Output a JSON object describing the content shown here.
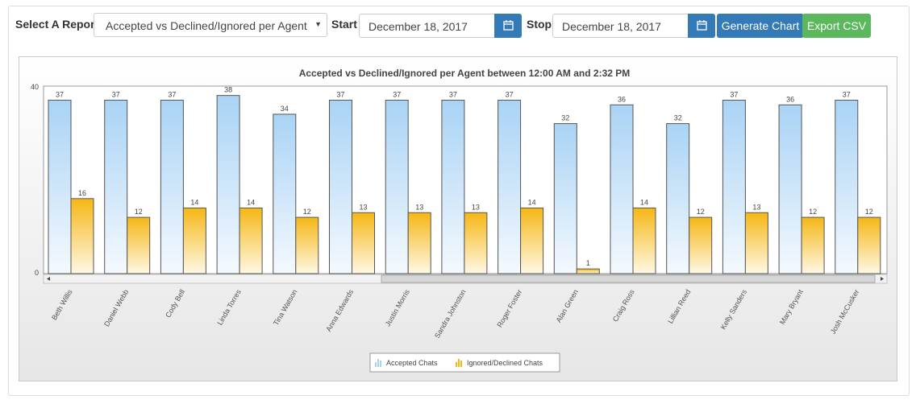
{
  "toolbar": {
    "select_report_label": "Select A Report",
    "report_value": "Accepted vs Declined/Ignored per Agent",
    "start_label": "Start",
    "start_value": "December 18, 2017",
    "stop_label": "Stop",
    "stop_value": "December 18, 2017",
    "generate_label": "Generate Chart",
    "export_label": "Export CSV",
    "primary_color": "#337ab7",
    "export_color": "#5cb85c"
  },
  "chart_data": {
    "type": "bar",
    "title": "Accepted vs Declined/Ignored per Agent between 12:00 AM and 2:32 PM",
    "categories": [
      "Beth Willis",
      "Daniel Webb",
      "Cody Bell",
      "Linda Torres",
      "Tina Watson",
      "Anna Edwards",
      "Justin Morris",
      "Sandra Johnston",
      "Roger Foster",
      "Alan Green",
      "Craig Ross",
      "Lillian Reed",
      "Kelly Sanders",
      "Mary Bryant",
      "Josh McCusker"
    ],
    "series": [
      {
        "name": "Accepted Chats",
        "values": [
          37,
          37,
          37,
          38,
          34,
          37,
          37,
          37,
          37,
          32,
          36,
          32,
          37,
          36,
          37
        ],
        "color": "#a9d3f5"
      },
      {
        "name": "Ignored/Declined Chats",
        "values": [
          16,
          12,
          14,
          14,
          12,
          13,
          13,
          13,
          14,
          1,
          14,
          12,
          13,
          12,
          12
        ],
        "color": "#f5b715"
      }
    ],
    "ylim": [
      0,
      40
    ],
    "y_ticks": [
      "0",
      "40"
    ],
    "legend_position": "bottom-center"
  }
}
